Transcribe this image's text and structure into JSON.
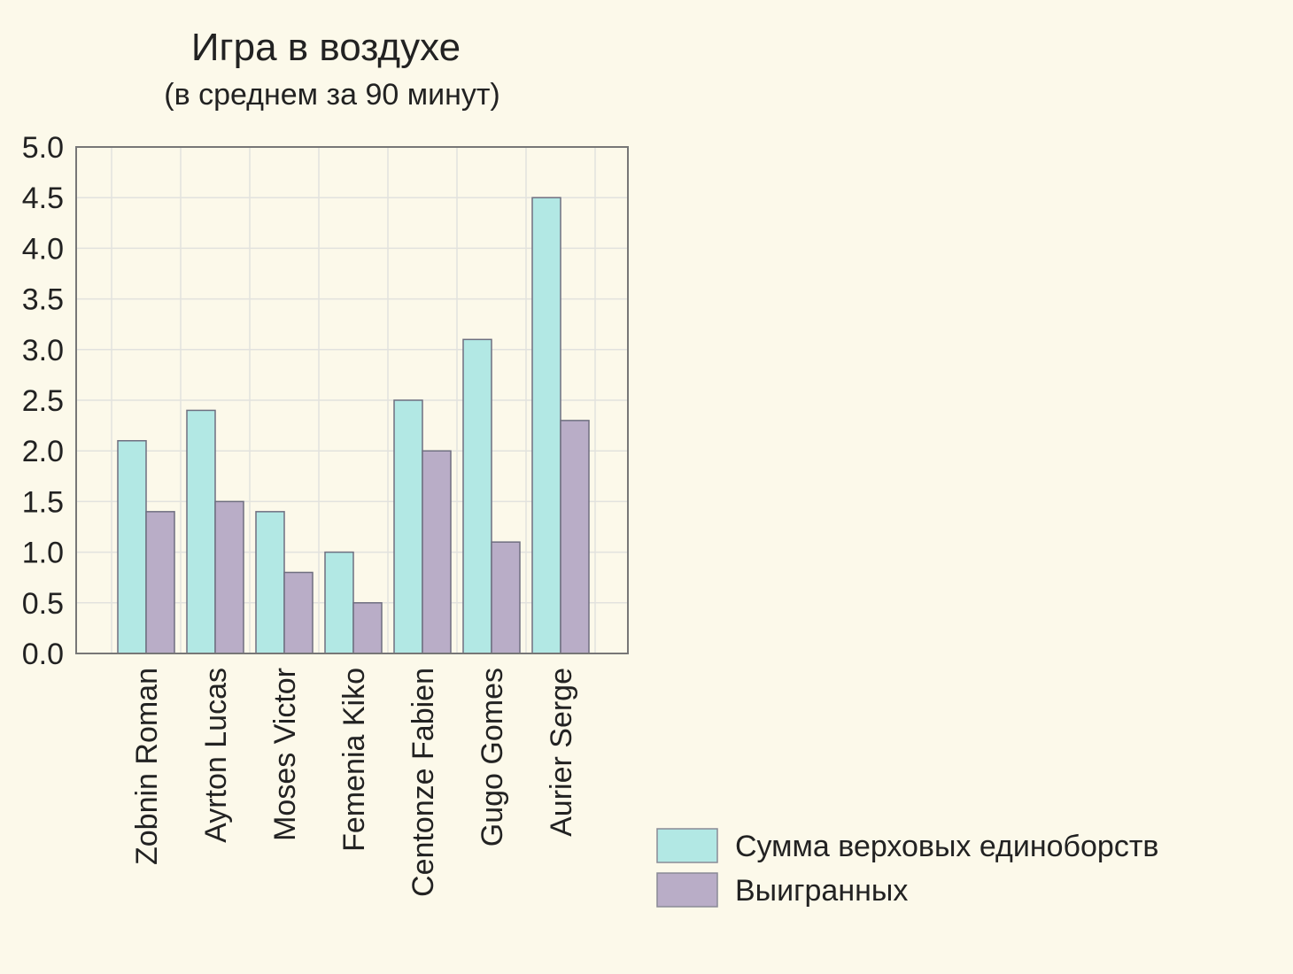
{
  "chart_data": {
    "type": "bar",
    "title": "Игра в воздухе",
    "subtitle": "(в среднем за 90 минут)",
    "xlabel": "",
    "ylabel": "",
    "categories": [
      "Zobnin Roman",
      "Ayrton Lucas",
      "Moses Victor",
      "Femenia Kiko",
      "Centonze Fabien",
      "Gugo Gomes",
      "Aurier Serge"
    ],
    "series": [
      {
        "name": "Сумма верховых единоборств",
        "color": "#b2e8e4",
        "values": [
          2.1,
          2.4,
          1.4,
          1.0,
          2.5,
          3.1,
          4.5
        ]
      },
      {
        "name": "Выигранных",
        "color": "#b9adc7",
        "values": [
          1.4,
          1.5,
          0.8,
          0.5,
          2.0,
          1.1,
          2.3
        ]
      }
    ],
    "ylim": [
      0,
      5.0
    ],
    "yticks": [
      "0.0",
      "0.5",
      "1.0",
      "1.5",
      "2.0",
      "2.5",
      "3.0",
      "3.5",
      "4.0",
      "4.5",
      "5.0"
    ],
    "grid": true,
    "legend_position": "bottom-right"
  }
}
